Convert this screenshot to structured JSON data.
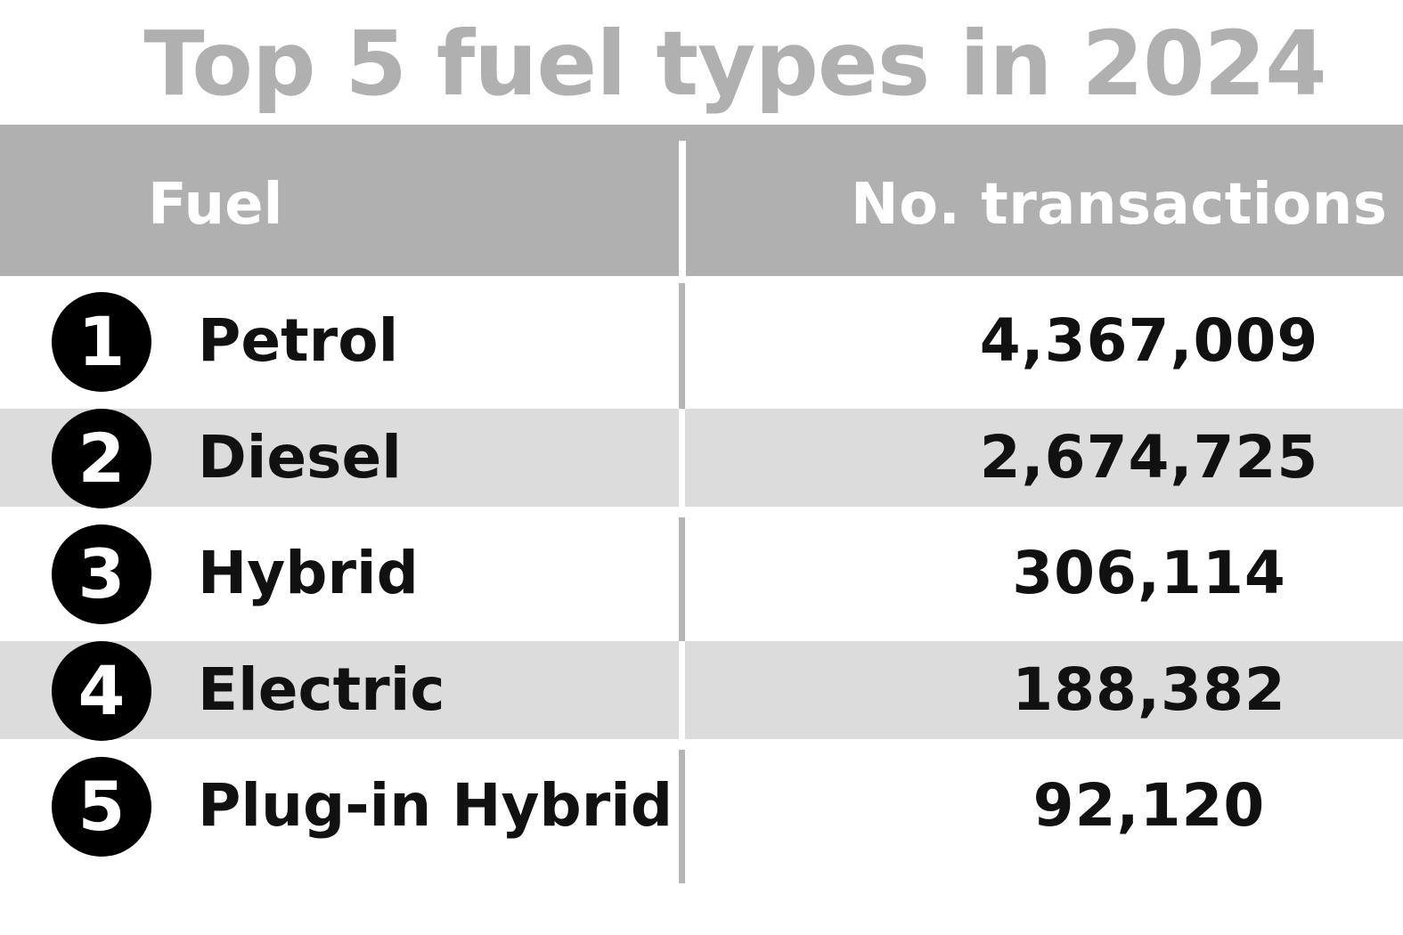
{
  "chart_data": {
    "type": "table",
    "title": "Top 5 fuel types in 2024",
    "columns": [
      "Fuel",
      "No. transactions"
    ],
    "rows": [
      {
        "rank": "1",
        "fuel": "Petrol",
        "transactions": "4,367,009",
        "value": 4367009
      },
      {
        "rank": "2",
        "fuel": "Diesel",
        "transactions": "2,674,725",
        "value": 2674725
      },
      {
        "rank": "3",
        "fuel": "Hybrid",
        "transactions": "306,114",
        "value": 306114
      },
      {
        "rank": "4",
        "fuel": "Electric",
        "transactions": "188,382",
        "value": 188382
      },
      {
        "rank": "5",
        "fuel": "Plug-in Hybrid",
        "transactions": "92,120",
        "value": 92120
      }
    ]
  },
  "colors": {
    "title": "#b0b0b0",
    "header_background": "#b0b0b0",
    "header_text": "#ffffff",
    "shaded_row": "#dcdcdc",
    "rank_badge": "#000000",
    "body_text": "#111111"
  }
}
